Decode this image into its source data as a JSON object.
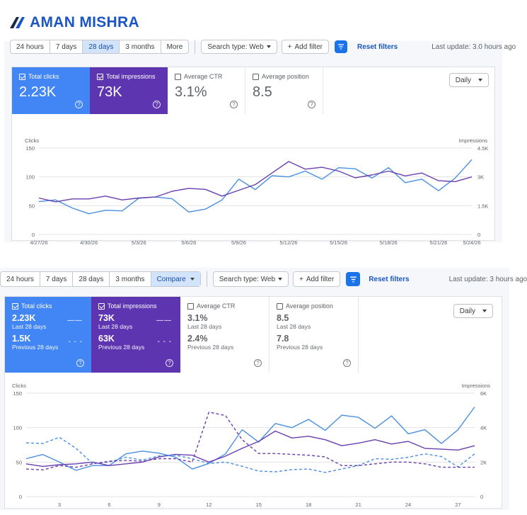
{
  "brand": {
    "name": "AMAN MISHRA",
    "logo_letter": "A"
  },
  "top": {
    "toolbar": {
      "ranges": [
        "24 hours",
        "7 days",
        "28 days",
        "3 months",
        "More"
      ],
      "active_range": "28 days",
      "search_type": "Search type: Web",
      "add_filter": "Add filter",
      "reset": "Reset filters",
      "last_update": "Last update: 3.0 hours ago"
    },
    "metrics": [
      {
        "label": "Total clicks",
        "value": "2.23K",
        "checked": true
      },
      {
        "label": "Total impressions",
        "value": "73K",
        "checked": true
      },
      {
        "label": "Average CTR",
        "value": "3.1%",
        "checked": false
      },
      {
        "label": "Average position",
        "value": "8.5",
        "checked": false
      }
    ],
    "period": "Daily"
  },
  "bottom": {
    "toolbar": {
      "ranges": [
        "24 hours",
        "7 days",
        "28 days",
        "3 months"
      ],
      "compare": "Compare",
      "search_type": "Search type: Web",
      "add_filter": "Add filter",
      "reset": "Reset filters",
      "last_update": "Last update: 3 hours ago"
    },
    "metrics": [
      {
        "label": "Total clicks",
        "v1": "2.23K",
        "s1": "Last 28 days",
        "v2": "1.5K",
        "s2": "Previous 28 days",
        "checked": true
      },
      {
        "label": "Total impressions",
        "v1": "73K",
        "s1": "Last 28 days",
        "v2": "63K",
        "s2": "Previous 28 days",
        "checked": true
      },
      {
        "label": "Average CTR",
        "v1": "3.1%",
        "s1": "Last 28 days",
        "v2": "2.4%",
        "s2": "Previous 28 days",
        "checked": false
      },
      {
        "label": "Average position",
        "v1": "8.5",
        "s1": "Last 28 days",
        "v2": "7.8",
        "s2": "Previous 28 days",
        "checked": false
      }
    ],
    "period": "Daily"
  },
  "colors": {
    "clicks": "#4a8fe0",
    "impressions": "#6a3fb0",
    "active_blue": "#4285f4",
    "active_purple": "#5e35b1",
    "link": "#1a56c4"
  },
  "chart_data": [
    {
      "type": "line",
      "xlabel": "",
      "ylabel": "Clicks",
      "y2label": "Impressions",
      "ylim": [
        0,
        150
      ],
      "y2lim": [
        0,
        4500
      ],
      "yticks": [
        "0",
        "50",
        "100",
        "150"
      ],
      "y2ticks": [
        "0",
        "1.5K",
        "3K",
        "4.5K"
      ],
      "x_tick_labels": [
        "4/27/26",
        "4/30/26",
        "5/3/26",
        "5/6/26",
        "5/9/26",
        "5/12/26",
        "5/15/26",
        "5/18/26",
        "5/21/26",
        "5/24/26"
      ],
      "series": [
        {
          "name": "Clicks",
          "axis": "left",
          "values": [
            57,
            60,
            46,
            36,
            42,
            41,
            63,
            65,
            62,
            39,
            44,
            60,
            96,
            78,
            102,
            100,
            110,
            96,
            116,
            114,
            98,
            116,
            90,
            96,
            76,
            98,
            130
          ]
        },
        {
          "name": "Impressions",
          "axis": "right",
          "values": [
            1900,
            1700,
            1850,
            1850,
            2000,
            1800,
            1900,
            1950,
            2250,
            2400,
            2350,
            2000,
            2300,
            2600,
            3200,
            3800,
            3400,
            3500,
            3300,
            2950,
            3100,
            3300,
            3050,
            3200,
            2800,
            2750,
            3000
          ]
        }
      ]
    },
    {
      "type": "line",
      "xlabel": "",
      "ylabel": "Clicks",
      "y2label": "Impressions",
      "ylim": [
        0,
        150
      ],
      "y2lim": [
        0,
        6000
      ],
      "yticks": [
        "0",
        "50",
        "100",
        "150"
      ],
      "y2ticks": [
        "0",
        "2K",
        "4K",
        "6K"
      ],
      "x_tick_labels": [
        "3",
        "6",
        "9",
        "12",
        "15",
        "18",
        "21",
        "24",
        "27"
      ],
      "series": [
        {
          "name": "Clicks (last 28 days)",
          "axis": "left",
          "style": "solid",
          "values": [
            55,
            61,
            50,
            38,
            45,
            45,
            62,
            66,
            63,
            57,
            40,
            48,
            62,
            97,
            79,
            106,
            100,
            112,
            96,
            118,
            115,
            99,
            117,
            91,
            97,
            77,
            97,
            130
          ]
        },
        {
          "name": "Impressions (last 28 days)",
          "axis": "right",
          "style": "solid",
          "values": [
            1900,
            1750,
            1850,
            1900,
            2000,
            1800,
            1900,
            2000,
            2300,
            2450,
            2400,
            2000,
            2350,
            2800,
            3200,
            3800,
            3400,
            3500,
            3300,
            2950,
            3100,
            3300,
            3050,
            3200,
            2800,
            2750,
            2700,
            2950
          ]
        },
        {
          "name": "Clicks (previous 28 days)",
          "axis": "left",
          "style": "dashed",
          "values": [
            78,
            77,
            86,
            70,
            48,
            50,
            57,
            53,
            59,
            60,
            55,
            48,
            50,
            44,
            37,
            36,
            39,
            40,
            35,
            40,
            45,
            55,
            54,
            57,
            62,
            58,
            43,
            62
          ]
        },
        {
          "name": "Impressions (previous 28 days)",
          "axis": "right",
          "style": "dashed",
          "values": [
            1600,
            1550,
            1800,
            1700,
            1900,
            2050,
            2100,
            2050,
            2200,
            2200,
            2000,
            4900,
            4700,
            3300,
            2500,
            2500,
            2450,
            2400,
            2300,
            1800,
            1800,
            1900,
            2000,
            2000,
            1900,
            1700,
            1700,
            1700
          ]
        }
      ]
    }
  ]
}
